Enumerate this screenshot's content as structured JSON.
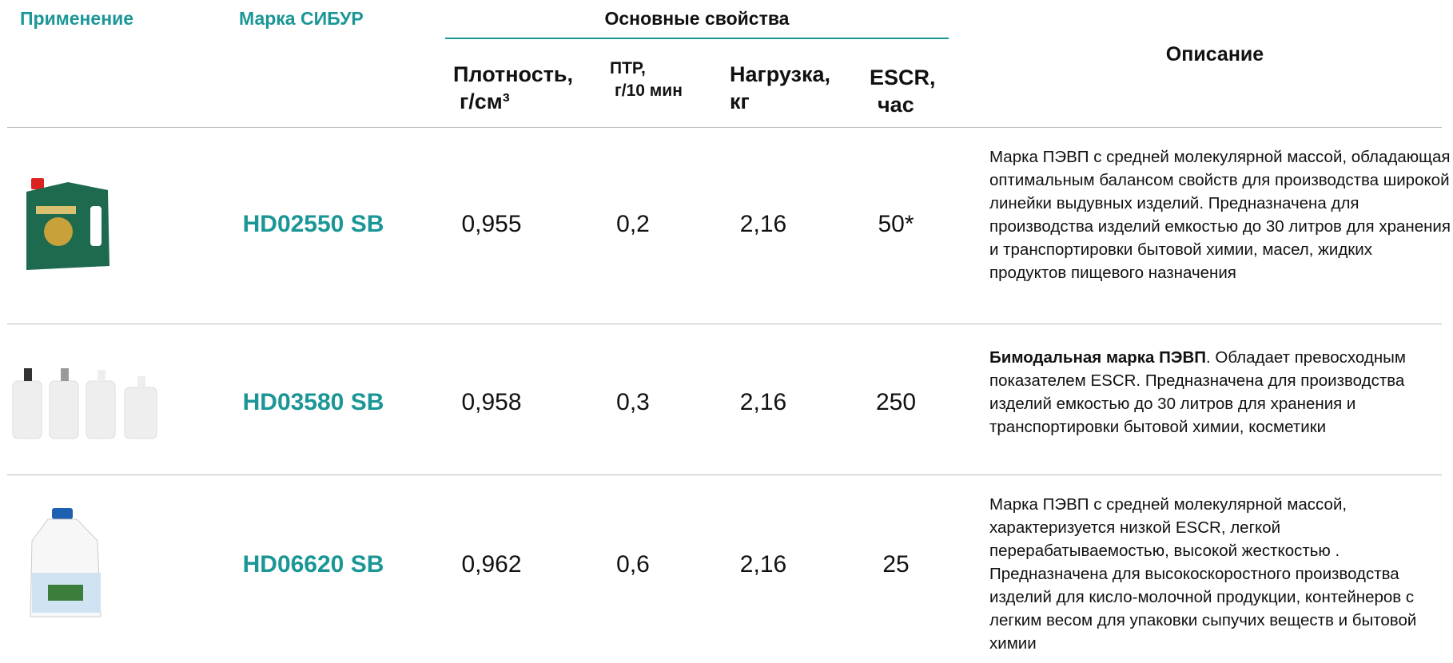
{
  "header": {
    "application": "Применение",
    "grade": "Марка СИБУР",
    "properties": "Основные свойства",
    "density": [
      "Плотность,",
      "г/см³"
    ],
    "mfr": [
      "ПТР,",
      "г/10 мин"
    ],
    "load": [
      "Нагрузка,",
      "кг"
    ],
    "escr": [
      "ESCR,",
      "час"
    ],
    "description": "Описание"
  },
  "rows": [
    {
      "grade": "HD02550 SB",
      "density": "0,955",
      "mfr": "0,2",
      "load": "2,16",
      "escr": "50*",
      "description": "Марка  ПЭВП с средней молекулярной массой, обладающая оптимальным балансом свойств для производства широкой линейки выдувных изделий. Предназначена для производства изделий емкостью до 30 литров для хранения и транспортировки бытовой химии, масел, жидких продуктов пищевого назначения"
    },
    {
      "grade": "HD03580 SB",
      "density": "0,958",
      "mfr": "0,3",
      "load": "2,16",
      "escr": "250",
      "description_bold": "Бимодальная марка ПЭВП",
      "description": ". Обладает превосходным показателем ESCR. Предназначена для производства изделий емкостью до 30 литров для хранения и транспортировки бытовой химии, косметики"
    },
    {
      "grade": "HD06620 SB",
      "density": "0,962",
      "mfr": "0,6",
      "load": "2,16",
      "escr": "25",
      "description": "Марка  ПЭВП с средней молекулярной массой, характеризуется низкой ESCR, легкой перерабатываемостью,  высокой жесткостью . Предназначена для высокоскоростного производства изделий для кисло-молочной продукции, контейнеров  с легким весом для упаковки сыпучих веществ и бытовой химии"
    }
  ]
}
